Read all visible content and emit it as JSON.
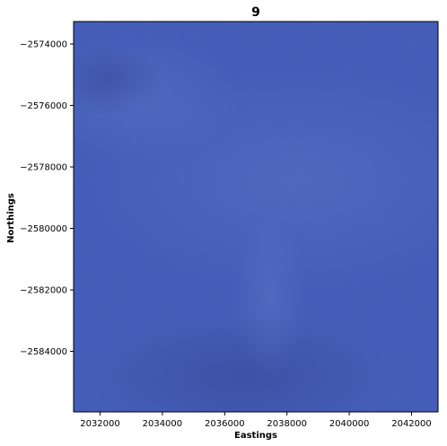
{
  "chart_data": {
    "type": "heatmap",
    "title": "9",
    "xlabel": "Eastings",
    "ylabel": "Northings",
    "xlim": [
      2031150,
      2042850
    ],
    "ylim": [
      -2585970,
      -2573270
    ],
    "xticks": [
      2032000,
      2034000,
      2036000,
      2038000,
      2040000,
      2042000
    ],
    "xtick_labels": [
      "2032000",
      "2034000",
      "2036000",
      "2038000",
      "2040000",
      "2042000"
    ],
    "yticks": [
      -2574000,
      -2576000,
      -2578000,
      -2580000,
      -2582000,
      -2584000
    ],
    "ytick_labels": [
      "−2574000",
      "−2576000",
      "−2578000",
      "−2580000",
      "−2582000",
      "−2584000"
    ],
    "grid": false,
    "colors": {
      "image_base": "#3f59b6",
      "image_light": "#4a64c2",
      "image_dark": "#344a9c"
    }
  }
}
